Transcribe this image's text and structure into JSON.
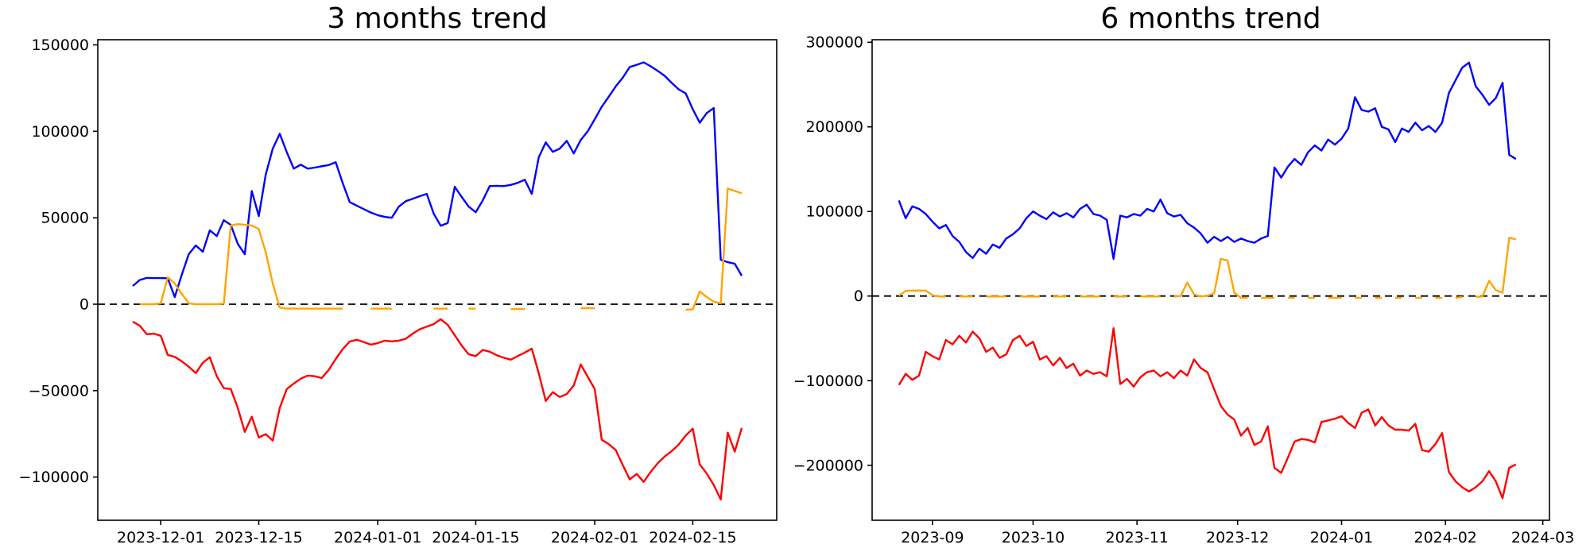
{
  "figure": {
    "background": "#ffffff",
    "frame_color": "#000000"
  },
  "chart_data": [
    {
      "type": "line",
      "title": "3 months trend",
      "grid": false,
      "legend": "none",
      "x_axis": {
        "tick_labels": [
          "2023-12-01",
          "2023-12-15",
          "2024-01-01",
          "2024-01-15",
          "2024-02-01",
          "2024-02-15"
        ],
        "tick_dates": [
          "2023-12-01",
          "2023-12-15",
          "2024-01-01",
          "2024-01-15",
          "2024-02-01",
          "2024-02-15"
        ],
        "xlim": [
          "2023-11-22",
          "2024-02-27"
        ]
      },
      "y_axis": {
        "tick_labels": [
          "150000",
          "100000",
          "50000",
          "0",
          "−50000",
          "−100000"
        ],
        "tick_values": [
          150000,
          100000,
          50000,
          0,
          -50000,
          -100000
        ],
        "ylim": [
          -125000,
          153000
        ]
      },
      "zero_line": {
        "style": "dashed",
        "color": "#000000"
      },
      "x_start": "2023-11-27",
      "x_end": "2024-02-22",
      "x_step_days": 1,
      "series": [
        {
          "name": "blue",
          "color": "#0000ff",
          "values": [
            10500,
            14000,
            15200,
            15100,
            15100,
            15000,
            4100,
            17000,
            29000,
            34000,
            30300,
            42700,
            39400,
            48600,
            45900,
            34900,
            28900,
            65500,
            51000,
            75000,
            90000,
            98600,
            88000,
            78400,
            80700,
            78400,
            79000,
            79800,
            80500,
            82100,
            70000,
            59100,
            57000,
            55000,
            53000,
            51500,
            50500,
            50000,
            56400,
            59600,
            61000,
            62500,
            63800,
            52300,
            45400,
            47000,
            67900,
            62000,
            56400,
            53200,
            60000,
            68300,
            68500,
            68300,
            69000,
            70200,
            72000,
            63800,
            85000,
            93600,
            88100,
            90000,
            94500,
            87200,
            95000,
            100000,
            107000,
            114200,
            120000,
            126000,
            131000,
            137200,
            138500,
            139900,
            137600,
            135000,
            132100,
            128000,
            124300,
            122000,
            112800,
            105000,
            110600,
            113500,
            25700,
            24300,
            23400,
            16500
          ]
        },
        {
          "name": "orange",
          "color": "#ffa500",
          "values": [
            null,
            0,
            0,
            0,
            500,
            15500,
            12000,
            6000,
            500,
            0,
            0,
            0,
            0,
            300,
            45500,
            46300,
            46000,
            45500,
            43500,
            30000,
            12000,
            -2000,
            -2500,
            -2500,
            -2600,
            -2600,
            -2600,
            -2600,
            -2600,
            -2600,
            -2600,
            null,
            null,
            null,
            -2600,
            -2600,
            -2600,
            -2600,
            null,
            null,
            null,
            null,
            null,
            -2600,
            -2600,
            -2600,
            null,
            null,
            -2600,
            -2600,
            null,
            null,
            null,
            null,
            -2800,
            -2800,
            -2800,
            null,
            null,
            null,
            null,
            null,
            null,
            null,
            -2300,
            -2300,
            -2300,
            null,
            null,
            null,
            null,
            null,
            null,
            null,
            null,
            null,
            null,
            null,
            null,
            -3200,
            -3000,
            7300,
            4100,
            1400,
            500,
            67000,
            65500,
            64200
          ]
        },
        {
          "name": "red",
          "color": "#ff0000",
          "values": [
            -10100,
            -12400,
            -17400,
            -17000,
            -18300,
            -29400,
            -30500,
            -33000,
            -36200,
            -39900,
            -33900,
            -30700,
            -41700,
            -48600,
            -49100,
            -60000,
            -73900,
            -65100,
            -77100,
            -75200,
            -78900,
            -60000,
            -49100,
            -45900,
            -43100,
            -41300,
            -41700,
            -42700,
            -38000,
            -31700,
            -26000,
            -21600,
            -20600,
            -22000,
            -23400,
            -22500,
            -21100,
            -21500,
            -21100,
            -20000,
            -17000,
            -14500,
            -13000,
            -11500,
            -8700,
            -12000,
            -18000,
            -24000,
            -29000,
            -30000,
            -26500,
            -27500,
            -29500,
            -31000,
            -32100,
            -30000,
            -28000,
            -25700,
            -40000,
            -56000,
            -50900,
            -53700,
            -52000,
            -47000,
            -34900,
            -42000,
            -49100,
            -78400,
            -81000,
            -84400,
            -93000,
            -101400,
            -98200,
            -102800,
            -97000,
            -92000,
            -88100,
            -85000,
            -81200,
            -76000,
            -72000,
            -92700,
            -98000,
            -104600,
            -113000,
            -74300,
            -85300,
            -71600
          ]
        }
      ]
    },
    {
      "type": "line",
      "title": "6 months trend",
      "grid": false,
      "legend": "none",
      "x_axis": {
        "tick_labels": [
          "2023-09",
          "2023-10",
          "2023-11",
          "2023-12",
          "2024-01",
          "2024-02",
          "2024-03"
        ],
        "tick_dates": [
          "2023-09-01",
          "2023-10-01",
          "2023-11-01",
          "2023-12-01",
          "2024-01-01",
          "2024-02-01",
          "2024-03-01"
        ],
        "xlim": [
          "2023-08-14",
          "2024-03-03"
        ]
      },
      "y_axis": {
        "tick_labels": [
          "300000",
          "200000",
          "100000",
          "0",
          "−100000",
          "−200000"
        ],
        "tick_values": [
          300000,
          200000,
          100000,
          0,
          -100000,
          -200000
        ],
        "ylim": [
          -265000,
          303000
        ]
      },
      "zero_line": {
        "style": "dashed",
        "color": "#000000"
      },
      "x_start": "2023-08-22",
      "x_end": "2024-02-22",
      "x_step_days": 2,
      "series": [
        {
          "name": "blue",
          "color": "#0000ff",
          "values": [
            113000,
            92000,
            106000,
            103000,
            97000,
            88000,
            80000,
            84000,
            71000,
            64000,
            52000,
            45000,
            56000,
            50000,
            61000,
            57000,
            68000,
            73000,
            80000,
            92000,
            100000,
            95000,
            91000,
            99000,
            94000,
            98000,
            93000,
            103000,
            108000,
            97000,
            95000,
            90000,
            44000,
            95000,
            93000,
            97000,
            95000,
            103000,
            100000,
            114000,
            98000,
            94000,
            96000,
            86000,
            81000,
            74000,
            63000,
            70000,
            65000,
            70000,
            64000,
            68000,
            65000,
            63000,
            68000,
            71000,
            152000,
            140000,
            153000,
            162000,
            155000,
            170000,
            178000,
            172000,
            185000,
            179000,
            186000,
            198000,
            235000,
            220000,
            218000,
            222000,
            200000,
            197000,
            182000,
            198000,
            194000,
            205000,
            196000,
            201000,
            194000,
            205000,
            240000,
            255000,
            270000,
            276000,
            248000,
            238000,
            226000,
            234000,
            252000,
            167000,
            162000
          ]
        },
        {
          "name": "orange",
          "color": "#ffa500",
          "values": [
            500,
            6000,
            6500,
            6500,
            6500,
            1000,
            -500,
            -500,
            null,
            -500,
            -500,
            -500,
            null,
            -500,
            -500,
            -500,
            -500,
            null,
            -500,
            -500,
            -500,
            -500,
            null,
            -500,
            -500,
            -500,
            null,
            -500,
            -500,
            -500,
            -500,
            null,
            -500,
            -500,
            -500,
            null,
            -500,
            -500,
            -500,
            -500,
            null,
            -500,
            0,
            16000,
            2000,
            -500,
            500,
            3000,
            44000,
            42000,
            4000,
            -2000,
            -2000,
            null,
            -2000,
            -2000,
            -2000,
            null,
            -2000,
            -2000,
            null,
            -2000,
            -2000,
            null,
            -2000,
            -2000,
            -2000,
            null,
            -2000,
            -2000,
            null,
            -2000,
            -2000,
            null,
            -2000,
            -2000,
            null,
            -2000,
            -2000,
            null,
            -2000,
            -2000,
            null,
            -2000,
            -1000,
            null,
            -1000,
            -500,
            18000,
            7000,
            4000,
            69000,
            67000
          ]
        },
        {
          "name": "red",
          "color": "#ff0000",
          "values": [
            -105000,
            -92000,
            -99000,
            -94000,
            -66000,
            -71000,
            -75000,
            -52000,
            -57000,
            -47000,
            -55000,
            -42000,
            -50000,
            -66000,
            -61000,
            -73000,
            -69000,
            -52000,
            -47000,
            -59000,
            -54000,
            -75000,
            -71000,
            -82000,
            -73000,
            -85000,
            -80000,
            -94000,
            -88000,
            -92000,
            -90000,
            -95000,
            -38000,
            -104000,
            -98000,
            -107000,
            -96000,
            -90000,
            -88000,
            -95000,
            -90000,
            -97000,
            -88000,
            -94000,
            -75000,
            -85000,
            -90000,
            -110000,
            -130000,
            -140000,
            -146000,
            -165000,
            -156000,
            -176000,
            -172000,
            -154000,
            -203000,
            -209000,
            -191000,
            -172000,
            -169000,
            -170000,
            -173000,
            -149000,
            -147000,
            -145000,
            -142000,
            -150000,
            -156000,
            -138000,
            -134000,
            -153000,
            -143000,
            -153000,
            -158000,
            -158000,
            -159000,
            -151000,
            -182000,
            -184000,
            -175000,
            -162000,
            -208000,
            -219000,
            -226000,
            -231000,
            -226000,
            -219000,
            -207000,
            -219000,
            -239000,
            -203000,
            -199000
          ]
        }
      ]
    }
  ]
}
